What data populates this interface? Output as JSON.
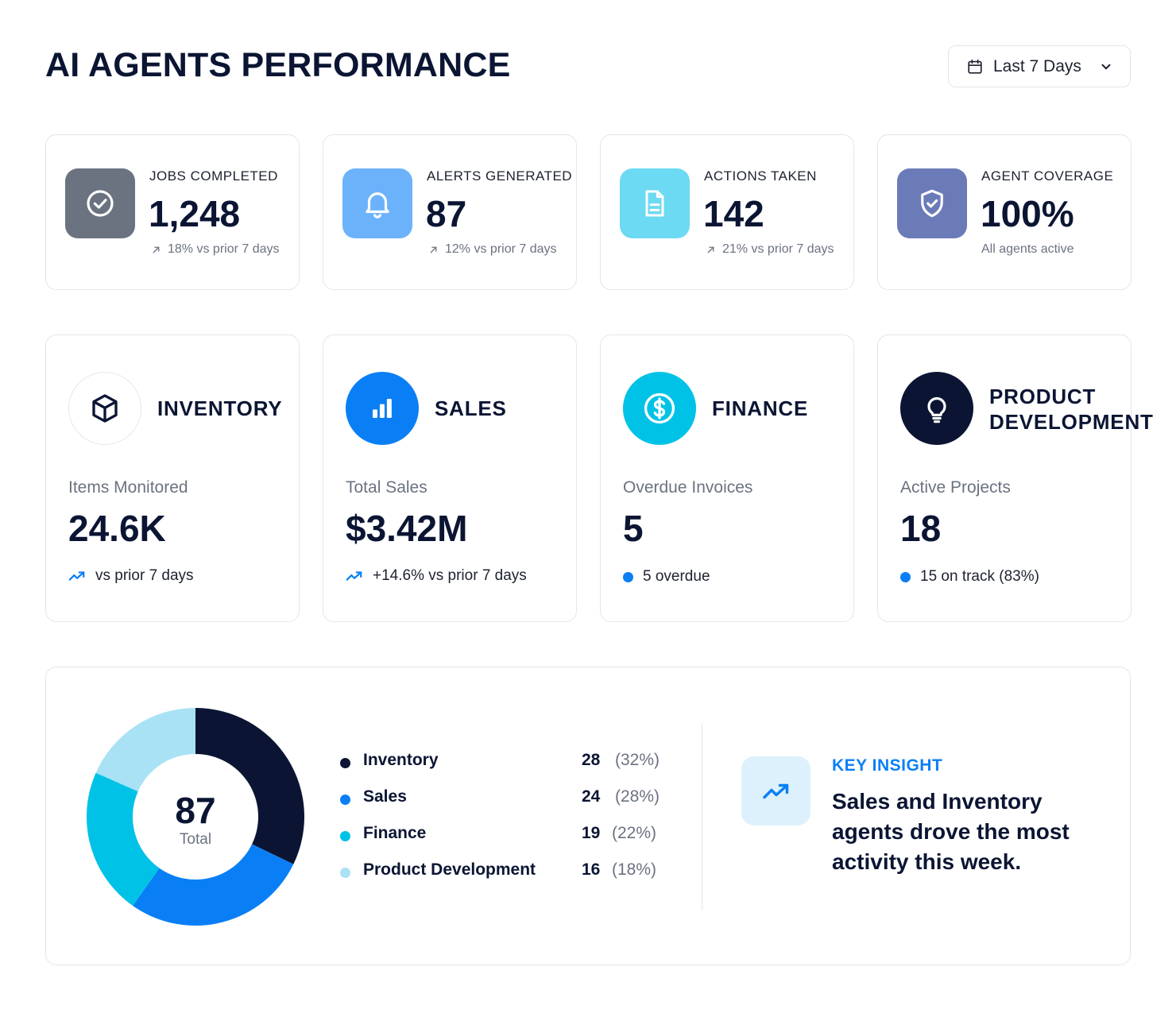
{
  "header": {
    "title": "AI AGENTS PERFORMANCE",
    "date_range": "Last 7 Days",
    "date_icon": "calendar-icon",
    "chevron_icon": "chevron-down-icon"
  },
  "stats": [
    {
      "label": "JOBS COMPLETED",
      "value": "1,248",
      "delta": "18% vs prior 7 days",
      "icon": "check-circle-icon",
      "color": "#6b7280"
    },
    {
      "label": "ALERTS GENERATED",
      "value": "87",
      "delta": "12% vs prior 7 days",
      "icon": "bell-icon",
      "color": "#6cb2fb"
    },
    {
      "label": "ACTIONS TAKEN",
      "value": "142",
      "delta": "21% vs prior 7 days",
      "icon": "document-icon",
      "color": "#6cdaf2"
    },
    {
      "label": "AGENT COVERAGE",
      "value": "100%",
      "delta": "All agents active",
      "icon": "shield-check-icon",
      "color": "#6a7bb8"
    }
  ],
  "departments": [
    {
      "name": "INVENTORY",
      "metric": "Items Monitored",
      "value": "24.6K",
      "footer": "vs prior 7 days",
      "icon": "cube-icon",
      "color": "#ffffff"
    },
    {
      "name": "SALES",
      "metric": "Total Sales",
      "value": "$3.42M",
      "footer": "+14.6% vs prior 7 days",
      "icon": "bar-chart-icon",
      "color": "#0a7ff5"
    },
    {
      "name": "FINANCE",
      "metric": "Overdue Invoices",
      "value": "5",
      "footer": "5 overdue",
      "icon": "dollar-icon",
      "color": "#00c2e6"
    },
    {
      "name_line1": "PRODUCT",
      "name_line2": "DEVELOPMENT",
      "metric": "Active Projects",
      "value": "18",
      "footer": "15 on track (83%)",
      "icon": "lightbulb-icon",
      "color": "#0b1533"
    }
  ],
  "chart_data": {
    "type": "pie",
    "center_value": "87",
    "center_label": "Total",
    "categories": [
      "Inventory",
      "Sales",
      "Finance",
      "Product Development"
    ],
    "values": [
      28,
      24,
      19,
      16
    ],
    "percent_labels": [
      "(32%)",
      "(28%)",
      "(22%)",
      "(18%)"
    ],
    "colors": [
      "#0b1533",
      "#0a7ff5",
      "#00c2e6",
      "#a9e2f5"
    ]
  },
  "insight": {
    "label": "KEY INSIGHT",
    "text": "Sales and Inventory agents drove the most activity this week.",
    "icon": "trend-up-icon"
  }
}
